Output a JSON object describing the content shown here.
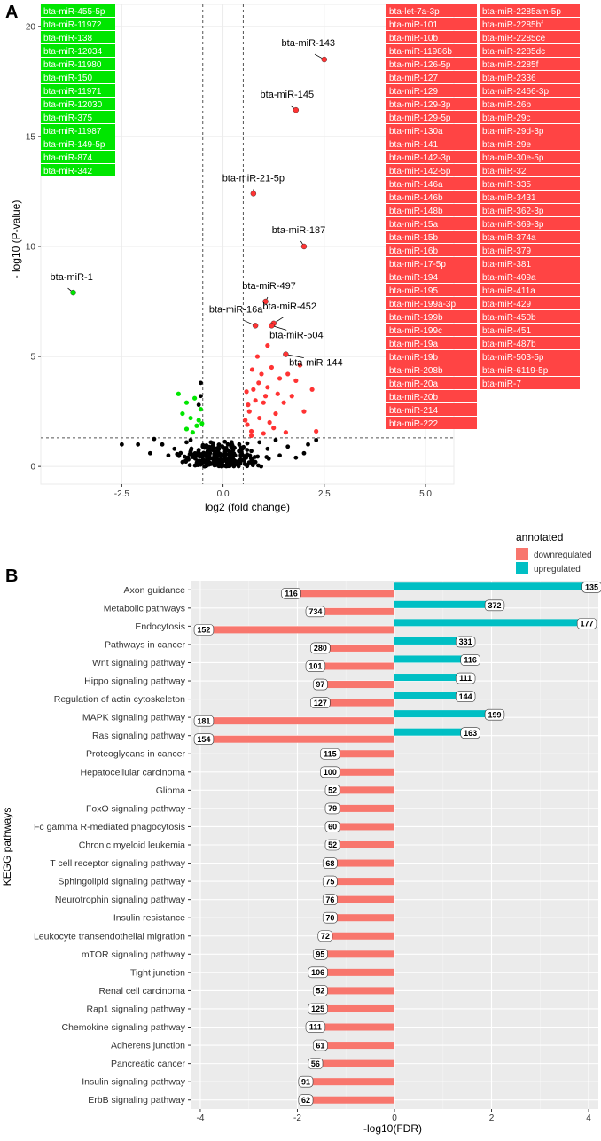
{
  "panelA": {
    "panel_label": "A",
    "down_label_color": "#00e600",
    "up_label_color": "#ff4444",
    "down_mirnas": [
      "bta-miR-455-5p",
      "bta-miR-11972",
      "bta-miR-138",
      "bta-miR-12034",
      "bta-miR-11980",
      "bta-miR-150",
      "bta-miR-11971",
      "bta-miR-12030",
      "bta-miR-375",
      "bta-miR-11987",
      "bta-miR-149-5p",
      "bta-miR-874",
      "bta-miR-342"
    ],
    "up_mirnas_col1": [
      "bta-let-7a-3p",
      "bta-miR-101",
      "bta-miR-10b",
      "bta-miR-11986b",
      "bta-miR-126-5p",
      "bta-miR-127",
      "bta-miR-129",
      "bta-miR-129-3p",
      "bta-miR-129-5p",
      "bta-miR-130a",
      "bta-miR-141",
      "bta-miR-142-3p",
      "bta-miR-142-5p",
      "bta-miR-146a",
      "bta-miR-146b",
      "bta-miR-148b",
      "bta-miR-15a",
      "bta-miR-15b",
      "bta-miR-16b",
      "bta-miR-17-5p",
      "bta-miR-194",
      "bta-miR-195",
      "bta-miR-199a-3p",
      "bta-miR-199b",
      "bta-miR-199c",
      "bta-miR-19a",
      "bta-miR-19b",
      "bta-miR-208b",
      "bta-miR-20a",
      "bta-miR-20b",
      "bta-miR-214",
      "bta-miR-222"
    ],
    "up_mirnas_col2": [
      "bta-miR-2285am-5p",
      "bta-miR-2285bf",
      "bta-miR-2285ce",
      "bta-miR-2285dc",
      "bta-miR-2285f",
      "bta-miR-2336",
      "bta-miR-2466-3p",
      "bta-miR-26b",
      "bta-miR-29c",
      "bta-miR-29d-3p",
      "bta-miR-29e",
      "bta-miR-30e-5p",
      "bta-miR-32",
      "bta-miR-335",
      "bta-miR-3431",
      "bta-miR-362-3p",
      "bta-miR-369-3p",
      "bta-miR-374a",
      "bta-miR-379",
      "bta-miR-381",
      "bta-miR-409a",
      "bta-miR-411a",
      "bta-miR-429",
      "bta-miR-450b",
      "bta-miR-451",
      "bta-miR-487b",
      "bta-miR-503-5p",
      "bta-miR-6119-5p",
      "bta-miR-7"
    ]
  },
  "panelB": {
    "panel_label": "B",
    "legend_title": "annotated",
    "legend_items": [
      "downregulated",
      "upregulated"
    ],
    "colors": {
      "downregulated": "#f8766d",
      "upregulated": "#00bfc4"
    }
  },
  "chart_data": [
    {
      "type": "scatter",
      "title": "",
      "xlabel": "log2 (fold change)",
      "ylabel": "- log10 (P-value)",
      "xlim": [
        -4.5,
        5.7
      ],
      "ylim": [
        -0.8,
        21
      ],
      "xticks": [
        -2.5,
        0.0,
        2.5,
        5.0
      ],
      "xtick_labels": [
        "-2.5",
        "0.0",
        "2.5",
        "5.0"
      ],
      "yticks": [
        0,
        5,
        10,
        15,
        20
      ],
      "ytick_labels": [
        "0",
        "5",
        "10",
        "15",
        "20"
      ],
      "thresholds": {
        "fold_change_lines": [
          -0.5,
          0.5
        ],
        "pvalue_line": 1.3
      },
      "colors": {
        "down": "#00e600",
        "up": "#ff3333",
        "ns": "#000000"
      },
      "labeled_points": [
        {
          "label": "bta-miR-1",
          "x": -3.7,
          "y": 7.9,
          "group": "down"
        },
        {
          "label": "bta-miR-143",
          "x": 2.5,
          "y": 18.5,
          "group": "up"
        },
        {
          "label": "bta-miR-145",
          "x": 1.8,
          "y": 16.2,
          "group": "up"
        },
        {
          "label": "bta-miR-21-5p",
          "x": 0.75,
          "y": 12.4,
          "group": "up"
        },
        {
          "label": "bta-miR-187",
          "x": 2.0,
          "y": 10.0,
          "group": "up"
        },
        {
          "label": "bta-miR-497",
          "x": 1.05,
          "y": 7.5,
          "group": "up"
        },
        {
          "label": "bta-miR-16a",
          "x": 0.8,
          "y": 6.4,
          "group": "up"
        },
        {
          "label": "bta-miR-452",
          "x": 1.25,
          "y": 6.5,
          "group": "up"
        },
        {
          "label": "bta-miR-504",
          "x": 1.2,
          "y": 6.4,
          "group": "up"
        },
        {
          "label": "bta-miR-144",
          "x": 1.55,
          "y": 5.1,
          "group": "up"
        }
      ],
      "down_points": [
        [
          -1.1,
          3.3
        ],
        [
          -0.9,
          2.9
        ],
        [
          -0.7,
          3.1
        ],
        [
          -0.55,
          2.6
        ],
        [
          -1.0,
          2.4
        ],
        [
          -0.8,
          2.2
        ],
        [
          -0.6,
          2.1
        ],
        [
          -0.65,
          1.85
        ],
        [
          -0.9,
          1.7
        ],
        [
          -0.75,
          1.55
        ],
        [
          -0.52,
          1.95
        ]
      ],
      "up_points": [
        [
          0.55,
          2.1
        ],
        [
          0.6,
          1.9
        ],
        [
          0.7,
          1.6
        ],
        [
          0.65,
          2.5
        ],
        [
          0.8,
          3.0
        ],
        [
          0.9,
          2.2
        ],
        [
          1.0,
          2.9
        ],
        [
          1.1,
          3.6
        ],
        [
          0.75,
          3.5
        ],
        [
          1.3,
          2.4
        ],
        [
          1.5,
          2.9
        ],
        [
          1.4,
          4.0
        ],
        [
          1.2,
          4.5
        ],
        [
          0.95,
          4.2
        ],
        [
          0.85,
          5.0
        ],
        [
          1.1,
          5.5
        ],
        [
          1.7,
          3.2
        ],
        [
          1.9,
          4.6
        ],
        [
          2.2,
          3.5
        ],
        [
          0.7,
          1.4
        ],
        [
          1.0,
          1.5
        ],
        [
          1.25,
          1.75
        ],
        [
          1.55,
          1.55
        ],
        [
          1.8,
          3.9
        ],
        [
          0.62,
          2.8
        ],
        [
          1.35,
          3.3
        ],
        [
          1.6,
          4.2
        ],
        [
          0.88,
          3.8
        ],
        [
          2.0,
          2.5
        ],
        [
          1.15,
          2.0
        ],
        [
          0.72,
          4.4
        ],
        [
          2.3,
          1.6
        ],
        [
          1.05,
          3.2
        ],
        [
          0.58,
          3.4
        ]
      ],
      "ns_points": [
        [
          -0.2,
          0.3
        ],
        [
          0.1,
          0.2
        ],
        [
          -0.4,
          0.6
        ],
        [
          0.3,
          0.5
        ],
        [
          -0.1,
          0.8
        ],
        [
          0.2,
          0.9
        ],
        [
          0.4,
          1.0
        ],
        [
          -0.3,
          1.1
        ],
        [
          0.0,
          0.05
        ],
        [
          0.15,
          0.4
        ],
        [
          -0.5,
          0.9
        ],
        [
          -0.7,
          0.5
        ],
        [
          -0.9,
          1.1
        ],
        [
          -1.2,
          0.8
        ],
        [
          -1.5,
          1.0
        ],
        [
          -1.8,
          0.6
        ],
        [
          -2.1,
          1.0
        ],
        [
          -0.8,
          1.2
        ],
        [
          -1.0,
          0.2
        ],
        [
          -0.6,
          0.1
        ],
        [
          0.5,
          0.3
        ],
        [
          0.7,
          0.7
        ],
        [
          0.9,
          1.1
        ],
        [
          1.1,
          0.8
        ],
        [
          1.3,
          1.2
        ],
        [
          1.6,
          0.9
        ],
        [
          2.0,
          0.6
        ],
        [
          2.3,
          1.2
        ],
        [
          1.8,
          0.4
        ],
        [
          -0.35,
          0.35
        ],
        [
          -0.15,
          0.55
        ],
        [
          0.25,
          0.75
        ],
        [
          0.35,
          0.15
        ],
        [
          -0.45,
          0.2
        ],
        [
          0.05,
          0.65
        ],
        [
          -0.25,
          0.95
        ],
        [
          0.45,
          0.85
        ],
        [
          0.6,
          1.05
        ],
        [
          -0.6,
          0.75
        ],
        [
          -0.55,
          3.8
        ],
        [
          -0.55,
          3.2
        ],
        [
          -0.6,
          2.8
        ],
        [
          -1.35,
          0.5
        ],
        [
          -2.5,
          1.0
        ],
        [
          -1.7,
          1.25
        ],
        [
          1.4,
          0.5
        ],
        [
          2.1,
          1.0
        ],
        [
          0.8,
          0.2
        ],
        [
          -0.05,
          0.45
        ],
        [
          0.12,
          1.0
        ]
      ]
    },
    {
      "type": "bar",
      "title": "",
      "xlabel": "-log10(FDR)",
      "ylabel": "KEGG pathways",
      "xlim": [
        -4.2,
        4.2
      ],
      "xticks": [
        -4,
        -2,
        0,
        2,
        4
      ],
      "xtick_labels": [
        "-4",
        "-2",
        "0",
        "2",
        "4"
      ],
      "legend_title": "annotated",
      "legend_position": "top-right",
      "categories": [
        "Axon guidance",
        "Metabolic pathways",
        "Endocytosis",
        "Pathways in cancer",
        "Wnt signaling pathway",
        "Hippo signaling pathway",
        "Regulation of actin cytoskeleton",
        "MAPK signaling pathway",
        "Ras signaling pathway",
        "Proteoglycans in cancer",
        "Hepatocellular carcinoma",
        "Glioma",
        "FoxO signaling pathway",
        "Fc gamma R-mediated phagocytosis",
        "Chronic myeloid leukemia",
        "T cell receptor signaling pathway",
        "Sphingolipid signaling pathway",
        "Neurotrophin signaling pathway",
        "Insulin resistance",
        "Leukocyte transendothelial migration",
        "mTOR signaling pathway",
        "Tight junction",
        "Renal cell carcinoma",
        "Rap1 signaling pathway",
        "Chemokine signaling pathway",
        "Adherens junction",
        "Pancreatic cancer",
        "Insulin signaling pathway",
        "ErbB signaling pathway"
      ],
      "series": [
        {
          "name": "downregulated",
          "values": [
            -2.2,
            -1.7,
            -4.0,
            -1.6,
            -1.7,
            -1.6,
            -1.6,
            -4.0,
            -4.0,
            -1.4,
            -1.4,
            -1.35,
            -1.35,
            -1.35,
            -1.35,
            -1.4,
            -1.4,
            -1.4,
            -1.4,
            -1.5,
            -1.6,
            -1.65,
            -1.6,
            -1.65,
            -1.7,
            -1.6,
            -1.7,
            -1.9,
            -1.9
          ],
          "labels": [
            "116",
            "734",
            "152",
            "280",
            "101",
            "97",
            "127",
            "181",
            "154",
            "115",
            "100",
            "52",
            "79",
            "60",
            "52",
            "68",
            "75",
            "76",
            "70",
            "72",
            "95",
            "106",
            "52",
            "125",
            "111",
            "61",
            "56",
            "91",
            "62"
          ]
        },
        {
          "name": "upregulated",
          "values": [
            4.1,
            2.1,
            4.0,
            1.5,
            1.6,
            1.5,
            1.5,
            2.1,
            1.6,
            null,
            null,
            null,
            null,
            null,
            null,
            null,
            null,
            null,
            null,
            null,
            null,
            null,
            null,
            null,
            null,
            null,
            null,
            null,
            null
          ],
          "labels": [
            "135",
            "372",
            "177",
            "331",
            "116",
            "111",
            "144",
            "199",
            "163",
            "",
            "",
            "",
            "",
            "",
            "",
            "",
            "",
            "",
            "",
            "",
            "",
            "",
            "",
            "",
            "",
            "",
            "",
            "",
            ""
          ]
        }
      ]
    }
  ]
}
